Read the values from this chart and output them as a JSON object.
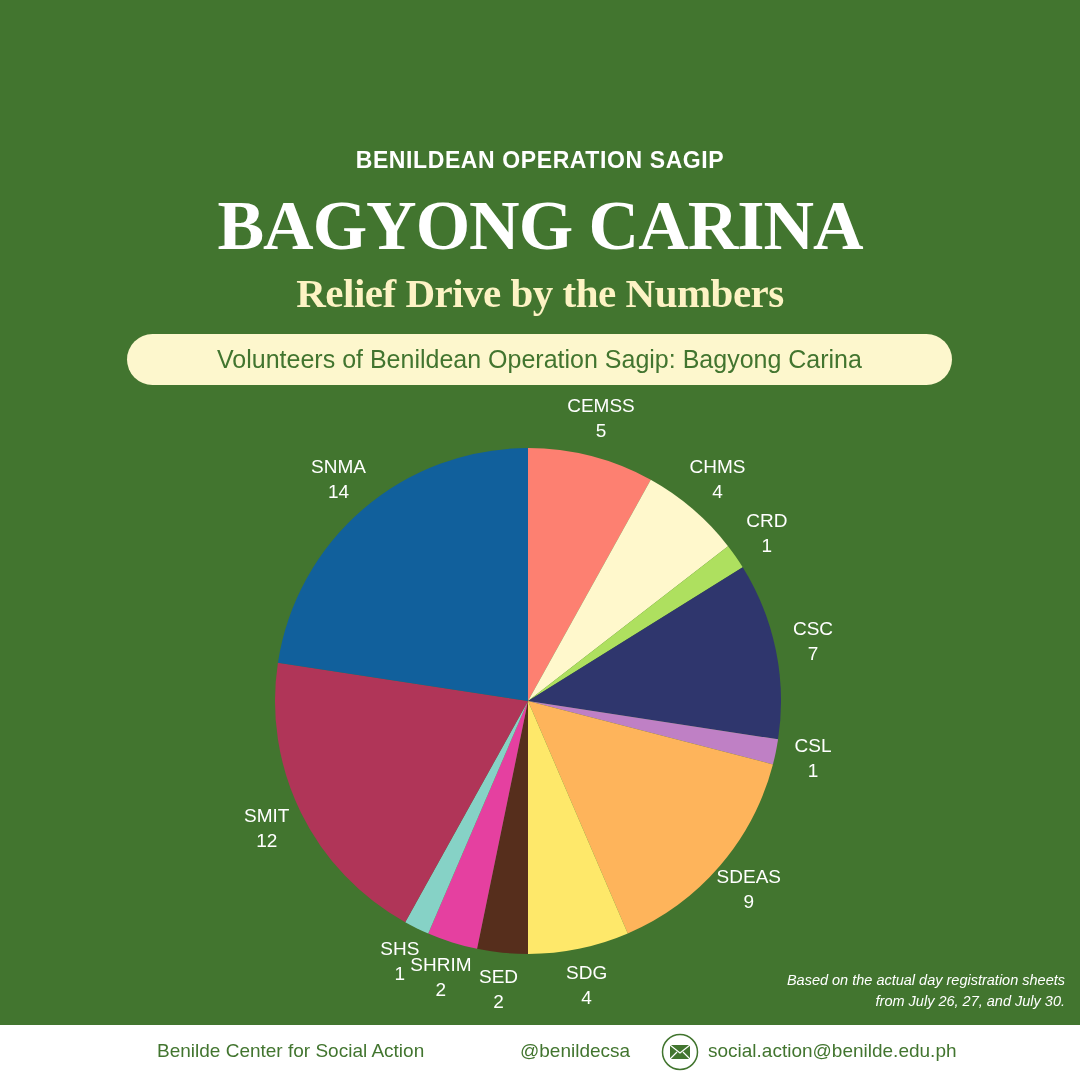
{
  "chart_data": {
    "type": "pie",
    "title": "BAGYONG CARINA",
    "subtitle": "Relief Drive by the Numbers",
    "categories": [
      "CEMSS",
      "CHMS",
      "CRD",
      "CSC",
      "CSL",
      "SDEAS",
      "SDG",
      "SED",
      "SHRIM",
      "SHS",
      "SMIT",
      "SNMA"
    ],
    "values": [
      5,
      4,
      1,
      7,
      1,
      9,
      4,
      2,
      2,
      1,
      12,
      14
    ],
    "colors": [
      "#fd8071",
      "#fff8cc",
      "#aee05f",
      "#2f366d",
      "#bf80c5",
      "#feb45b",
      "#fee86a",
      "#562e1c",
      "#e540a0",
      "#86d2c6",
      "#b03558",
      "#11609c"
    ],
    "data_labels": true,
    "legend": false,
    "annotations": [
      "BENILDEAN OPERATION SAGIP",
      "Volunteers of Benildean Operation Sagip: Bagyong Carina",
      "Based on the actual day registration sheets from July 26, 27, and July 30.",
      "Benilde Center for Social Action",
      "@benildecsa",
      "social.action@benilde.edu.ph"
    ]
  }
}
